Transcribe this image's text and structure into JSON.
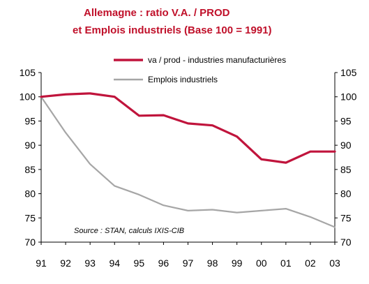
{
  "chart_data": {
    "type": "line",
    "title_line1": "Allemagne : ratio V.A. / PROD",
    "title_line2": "et Emplois industriels (Base 100 = 1991)",
    "categories": [
      "91",
      "92",
      "93",
      "94",
      "95",
      "96",
      "97",
      "98",
      "99",
      "00",
      "01",
      "02",
      "03"
    ],
    "series": [
      {
        "name": "va / prod - industries manufacturières",
        "color": "#c0143c",
        "values": [
          100,
          100.5,
          100.7,
          100,
          96.1,
          96.2,
          94.5,
          94.1,
          91.8,
          87.1,
          86.4,
          88.7,
          88.7
        ]
      },
      {
        "name": "Emplois industriels",
        "color": "#a6a6a6",
        "values": [
          100,
          92.6,
          86.1,
          81.6,
          79.8,
          77.6,
          76.5,
          76.7,
          76.1,
          76.5,
          76.9,
          75.2,
          73.1
        ]
      }
    ],
    "ylim": [
      70,
      105
    ],
    "yticks": [
      "70",
      "75",
      "80",
      "85",
      "90",
      "95",
      "100",
      "105"
    ],
    "source": "Source :  STAN, calculs IXIS-CIB"
  }
}
